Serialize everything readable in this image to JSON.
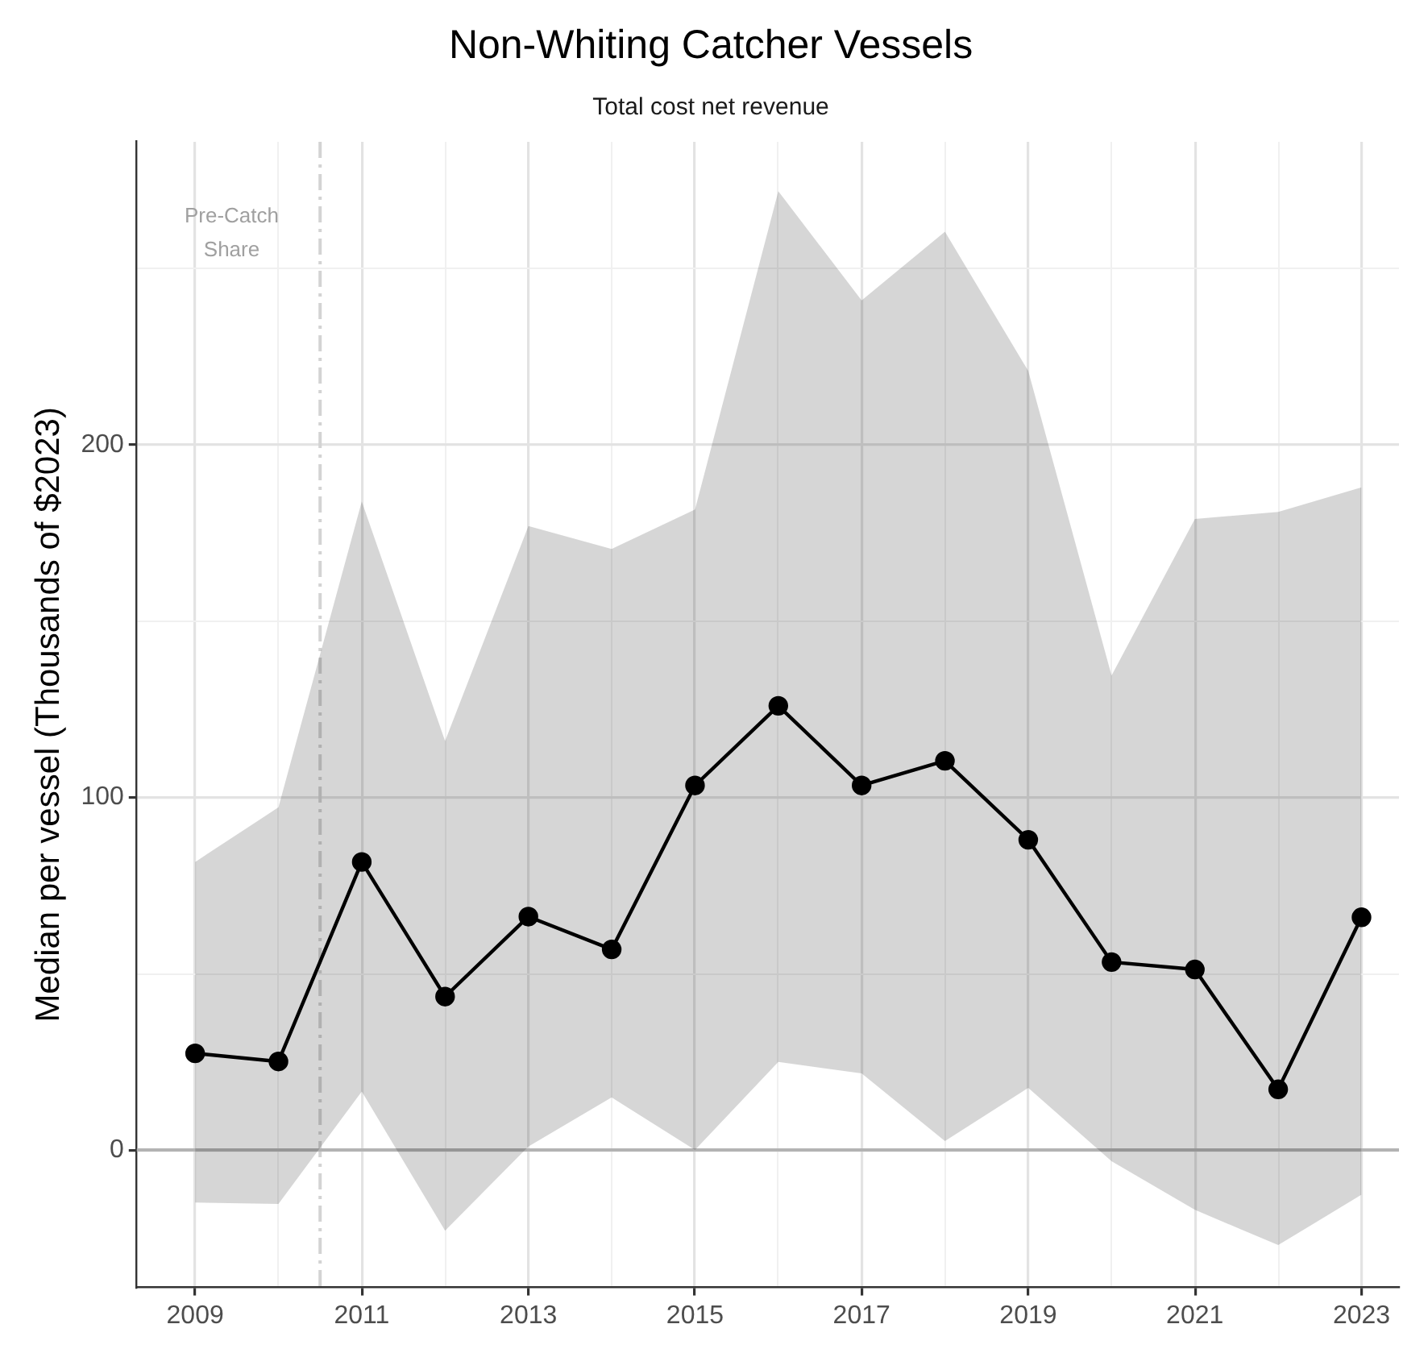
{
  "chart_data": {
    "type": "line",
    "title": "Non-Whiting Catcher Vessels",
    "subtitle": "Total cost net revenue",
    "ylabel": "Median per vessel (Thousands of $2023)",
    "x": [
      2009,
      2010,
      2011,
      2012,
      2013,
      2014,
      2015,
      2016,
      2017,
      2018,
      2019,
      2020,
      2021,
      2022,
      2023
    ],
    "series": [
      {
        "color": "#000000",
        "values": [
          27.4,
          25.1,
          81.7,
          43.5,
          66.2,
          56.9,
          103.4,
          126,
          103.4,
          110.4,
          88,
          53.3,
          51.2,
          17.2,
          66
        ],
        "lower": [
          -14.9,
          -15.3,
          16.6,
          -22.9,
          1,
          14.9,
          0,
          25,
          21.7,
          2.5,
          17.6,
          -3.2,
          -17,
          -27,
          -12.7
        ],
        "upper": [
          81.7,
          97.2,
          184,
          116,
          177,
          170.5,
          181.7,
          272,
          241,
          260.5,
          221,
          134.6,
          179,
          181,
          188
        ]
      }
    ],
    "xlim": [
      2008.3,
      2023.45
    ],
    "ylim": [
      -39,
      286
    ],
    "xticks": [
      2009,
      {
        "value": 2010,
        "label": null
      },
      2011,
      {
        "value": 2012,
        "label": null
      },
      2013,
      {
        "value": 2014,
        "label": null
      },
      2015,
      {
        "value": 2016,
        "label": null
      },
      2017,
      {
        "value": 2018,
        "label": null
      },
      2019,
      {
        "value": 2020,
        "label": null
      },
      2021,
      {
        "value": 2022,
        "label": null
      },
      2023
    ],
    "yticks": [
      0,
      {
        "value": 50,
        "label": null
      },
      100,
      {
        "value": 150,
        "label": null
      },
      200,
      {
        "value": 250,
        "label": null
      }
    ],
    "ref_lines": [
      {
        "axis": "x",
        "value": 2010.5,
        "label": "Pre-Catch Share",
        "color": "#d3d3d3",
        "line_style": "dashed"
      },
      {
        "axis": "y",
        "value": 0,
        "label": null,
        "color": "#b3b3b3",
        "line_style": "solid"
      }
    ],
    "grid": true,
    "legend": false,
    "marker": "circle",
    "line_style": "solid"
  }
}
